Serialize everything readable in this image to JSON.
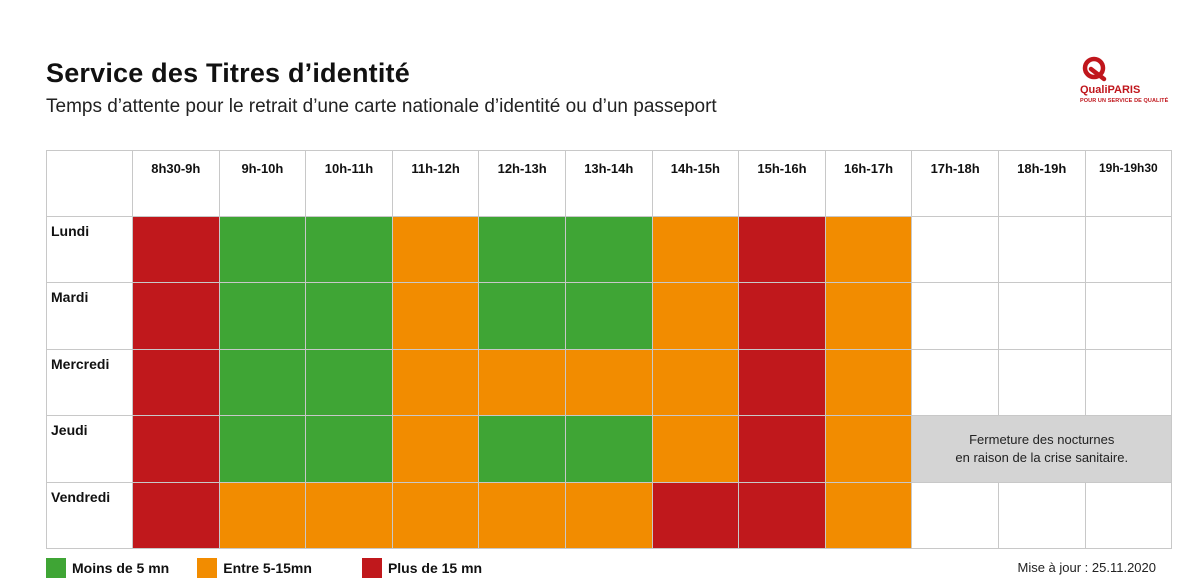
{
  "title": "Service des Titres d’identité",
  "subtitle": "Temps d’attente pour le retrait d’une carte nationale d’identité ou d’un passeport",
  "logo": {
    "name": "QualiPARIS",
    "tagline": "POUR UN SERVICE DE QUALITÉ",
    "color": "#c0161c"
  },
  "update_text": "Mise à jour : 25.11.2020",
  "closure_note": {
    "line1": "Fermeture des nocturnes",
    "line2": "en raison de la crise sanitaire.",
    "color": "#d4d4d4"
  },
  "colors": {
    "green": "#3fa535",
    "orange": "#f28c00",
    "red": "#c0181c",
    "empty": "#ffffff",
    "closed": "#d4d4d4"
  },
  "chart_data": {
    "type": "heatmap",
    "title": "Service des Titres d’identité",
    "subtitle": "Temps d’attente pour le retrait d’une carte nationale d’identité ou d’un passeport",
    "time_slots": [
      "8h30-9h",
      "9h-10h",
      "10h-11h",
      "11h-12h",
      "12h-13h",
      "13h-14h",
      "14h-15h",
      "15h-16h",
      "16h-17h",
      "17h-18h",
      "18h-19h",
      "19h-19h30"
    ],
    "days": [
      "Lundi",
      "Mardi",
      "Mercredi",
      "Jeudi",
      "Vendredi"
    ],
    "legend": [
      {
        "key": "green",
        "label": "Moins de 5 mn",
        "color": "#3fa535"
      },
      {
        "key": "orange",
        "label": "Entre 5-15mn",
        "color": "#f28c00"
      },
      {
        "key": "red",
        "label": "Plus de 15 mn",
        "color": "#c0181c"
      }
    ],
    "values": [
      [
        "red",
        "green",
        "green",
        "orange",
        "green",
        "green",
        "orange",
        "red",
        "orange",
        "",
        "",
        ""
      ],
      [
        "red",
        "green",
        "green",
        "orange",
        "green",
        "green",
        "orange",
        "red",
        "orange",
        "",
        "",
        ""
      ],
      [
        "red",
        "green",
        "green",
        "orange",
        "orange",
        "orange",
        "orange",
        "red",
        "orange",
        "",
        "",
        ""
      ],
      [
        "red",
        "green",
        "green",
        "orange",
        "green",
        "green",
        "orange",
        "red",
        "orange",
        "closed",
        "closed",
        "closed"
      ],
      [
        "red",
        "orange",
        "orange",
        "orange",
        "orange",
        "orange",
        "red",
        "red",
        "orange",
        "",
        "",
        ""
      ]
    ]
  }
}
